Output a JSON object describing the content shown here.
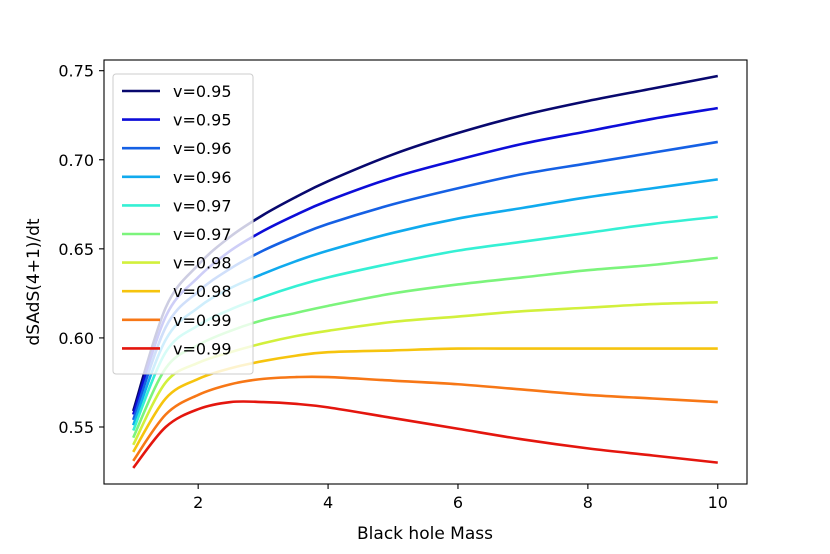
{
  "chart_data": {
    "type": "line",
    "title": "",
    "xlabel": "Black hole Mass",
    "ylabel": "dSAdS(4+1)/dt",
    "xlim": [
      0.55,
      10.45
    ],
    "ylim": [
      0.518,
      0.756
    ],
    "xticks": [
      2,
      4,
      6,
      8,
      10
    ],
    "yticks": [
      0.55,
      0.6,
      0.65,
      0.7,
      0.75
    ],
    "ytick_labels": [
      "0.55",
      "0.60",
      "0.65",
      "0.70",
      "0.75"
    ],
    "grid": false,
    "legend_position": "top-left",
    "x": [
      1,
      1.5,
      2,
      2.5,
      3,
      3.5,
      4,
      5,
      6,
      7,
      8,
      9,
      10
    ],
    "series": [
      {
        "name": "v=0.95",
        "color": "#08086e",
        "values": [
          0.559,
          0.617,
          0.641,
          0.657,
          0.669,
          0.679,
          0.688,
          0.703,
          0.715,
          0.725,
          0.733,
          0.74,
          0.747
        ]
      },
      {
        "name": "v=0.95",
        "color": "#0d0dd8",
        "values": [
          0.557,
          0.612,
          0.634,
          0.649,
          0.66,
          0.669,
          0.677,
          0.69,
          0.7,
          0.709,
          0.716,
          0.723,
          0.729
        ]
      },
      {
        "name": "v=0.96",
        "color": "#1560e4",
        "values": [
          0.554,
          0.606,
          0.626,
          0.639,
          0.649,
          0.657,
          0.664,
          0.675,
          0.684,
          0.692,
          0.698,
          0.704,
          0.71
        ]
      },
      {
        "name": "v=0.96",
        "color": "#10aaee",
        "values": [
          0.551,
          0.599,
          0.617,
          0.628,
          0.636,
          0.643,
          0.649,
          0.659,
          0.667,
          0.673,
          0.679,
          0.684,
          0.689
        ]
      },
      {
        "name": "v=0.97",
        "color": "#35f0d4",
        "values": [
          0.548,
          0.592,
          0.607,
          0.616,
          0.623,
          0.629,
          0.634,
          0.642,
          0.649,
          0.654,
          0.659,
          0.664,
          0.668
        ]
      },
      {
        "name": "v=0.97",
        "color": "#7cf47c",
        "values": [
          0.544,
          0.583,
          0.596,
          0.604,
          0.61,
          0.614,
          0.618,
          0.625,
          0.63,
          0.634,
          0.638,
          0.641,
          0.645
        ]
      },
      {
        "name": "v=0.98",
        "color": "#d2f03c",
        "values": [
          0.54,
          0.575,
          0.586,
          0.592,
          0.597,
          0.601,
          0.604,
          0.609,
          0.612,
          0.615,
          0.617,
          0.619,
          0.62
        ]
      },
      {
        "name": "v=0.98",
        "color": "#f6c40e",
        "values": [
          0.536,
          0.566,
          0.577,
          0.583,
          0.587,
          0.59,
          0.592,
          0.593,
          0.594,
          0.594,
          0.594,
          0.594,
          0.594
        ]
      },
      {
        "name": "v=0.99",
        "color": "#f77716",
        "values": [
          0.531,
          0.557,
          0.568,
          0.574,
          0.577,
          0.578,
          0.578,
          0.576,
          0.574,
          0.571,
          0.568,
          0.566,
          0.564
        ]
      },
      {
        "name": "v=0.99",
        "color": "#e4160e",
        "values": [
          0.527,
          0.55,
          0.56,
          0.564,
          0.564,
          0.563,
          0.561,
          0.555,
          0.549,
          0.543,
          0.538,
          0.534,
          0.53
        ]
      }
    ]
  }
}
